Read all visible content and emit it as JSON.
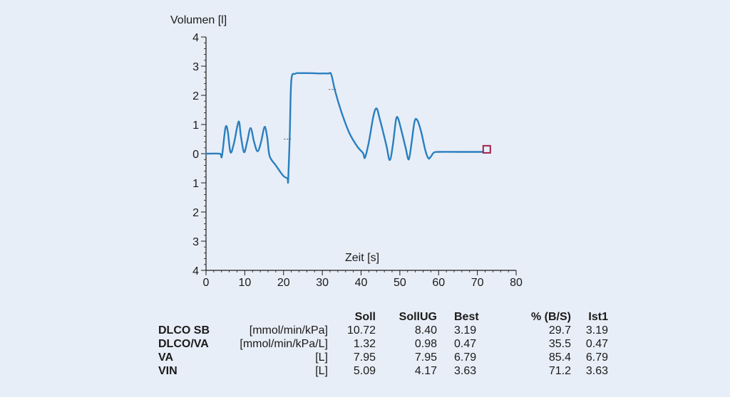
{
  "chart_data": {
    "type": "line",
    "ylabel": "Volumen [l]",
    "xlabel": "Zeit [s]",
    "xlim": [
      0,
      80
    ],
    "ylim": [
      -4,
      4
    ],
    "x_ticks": [
      0,
      10,
      20,
      30,
      40,
      50,
      60,
      70,
      80
    ],
    "y_tick_values": [
      4,
      3,
      2,
      1,
      0,
      -1,
      -2,
      -3,
      -4
    ],
    "y_tick_labels": [
      "4",
      "3",
      "2",
      "1",
      "0",
      "1",
      "2",
      "3",
      "4"
    ],
    "line_color": "#2a7fc0",
    "marker_color": "#a0204a",
    "series": [
      {
        "points": [
          [
            0,
            0
          ],
          [
            3.5,
            0
          ],
          [
            4.1,
            -0.08
          ],
          [
            5.0,
            0.88
          ],
          [
            5.6,
            0.78
          ],
          [
            6.3,
            0.05
          ],
          [
            7.2,
            0.35
          ],
          [
            8.4,
            1.1
          ],
          [
            9.0,
            0.6
          ],
          [
            9.8,
            0.05
          ],
          [
            10.6,
            0.4
          ],
          [
            11.5,
            0.88
          ],
          [
            12.4,
            0.4
          ],
          [
            13.3,
            0.08
          ],
          [
            14.2,
            0.4
          ],
          [
            15.1,
            0.92
          ],
          [
            15.8,
            0.55
          ],
          [
            16.4,
            -0.08
          ],
          [
            18.0,
            -0.4
          ],
          [
            19.3,
            -0.65
          ],
          [
            20.1,
            -0.78
          ],
          [
            21.0,
            -0.85
          ],
          [
            21.2,
            -0.9
          ],
          [
            21.6,
            0.6
          ],
          [
            22.0,
            2.5
          ],
          [
            23.0,
            2.74
          ],
          [
            24.5,
            2.76
          ],
          [
            27.0,
            2.76
          ],
          [
            29.5,
            2.75
          ],
          [
            31.5,
            2.75
          ],
          [
            32.3,
            2.72
          ],
          [
            33.3,
            2.15
          ],
          [
            35.0,
            1.4
          ],
          [
            37.0,
            0.7
          ],
          [
            39.0,
            0.25
          ],
          [
            40.5,
            0.02
          ],
          [
            41.0,
            -0.14
          ],
          [
            42.0,
            0.4
          ],
          [
            43.2,
            1.3
          ],
          [
            44.0,
            1.55
          ],
          [
            44.8,
            1.2
          ],
          [
            46.5,
            0.3
          ],
          [
            47.4,
            -0.22
          ],
          [
            48.2,
            0.3
          ],
          [
            49.0,
            1.15
          ],
          [
            49.5,
            1.22
          ],
          [
            50.3,
            0.85
          ],
          [
            51.5,
            0.2
          ],
          [
            52.3,
            -0.2
          ],
          [
            53.0,
            0.35
          ],
          [
            53.8,
            1.1
          ],
          [
            54.5,
            1.15
          ],
          [
            55.5,
            0.75
          ],
          [
            56.6,
            0.1
          ],
          [
            57.4,
            -0.16
          ],
          [
            58.0,
            -0.1
          ],
          [
            58.8,
            0.04
          ],
          [
            60.0,
            0.06
          ],
          [
            65.0,
            0.06
          ],
          [
            71.5,
            0.06
          ]
        ]
      }
    ],
    "markers": [
      {
        "x": 71.5,
        "y": 0.15,
        "shape": "square"
      }
    ],
    "phase_ticks": [
      {
        "x": 21.2,
        "y": 0.5
      },
      {
        "x": 32.8,
        "y": 2.2
      }
    ]
  },
  "results_table": {
    "headers": [
      "Soll",
      "SollUG",
      "Best",
      "% (B/S)",
      "Ist1"
    ],
    "rows": [
      {
        "name": "DLCO SB",
        "unit": "[mmol/min/kPa]",
        "soll": "10.72",
        "sollug": "8.40",
        "best": "3.19",
        "pct": "29.7",
        "ist": "3.19"
      },
      {
        "name": "DLCO/VA",
        "unit": "[mmol/min/kPa/L]",
        "soll": "1.32",
        "sollug": "0.98",
        "best": "0.47",
        "pct": "35.5",
        "ist": "0.47"
      },
      {
        "name": "VA",
        "unit": "[L]",
        "soll": "7.95",
        "sollug": "7.95",
        "best": "6.79",
        "pct": "85.4",
        "ist": "6.79"
      },
      {
        "name": "VIN",
        "unit": "[L]",
        "soll": "5.09",
        "sollug": "4.17",
        "best": "3.63",
        "pct": "71.2",
        "ist": "3.63"
      }
    ]
  }
}
